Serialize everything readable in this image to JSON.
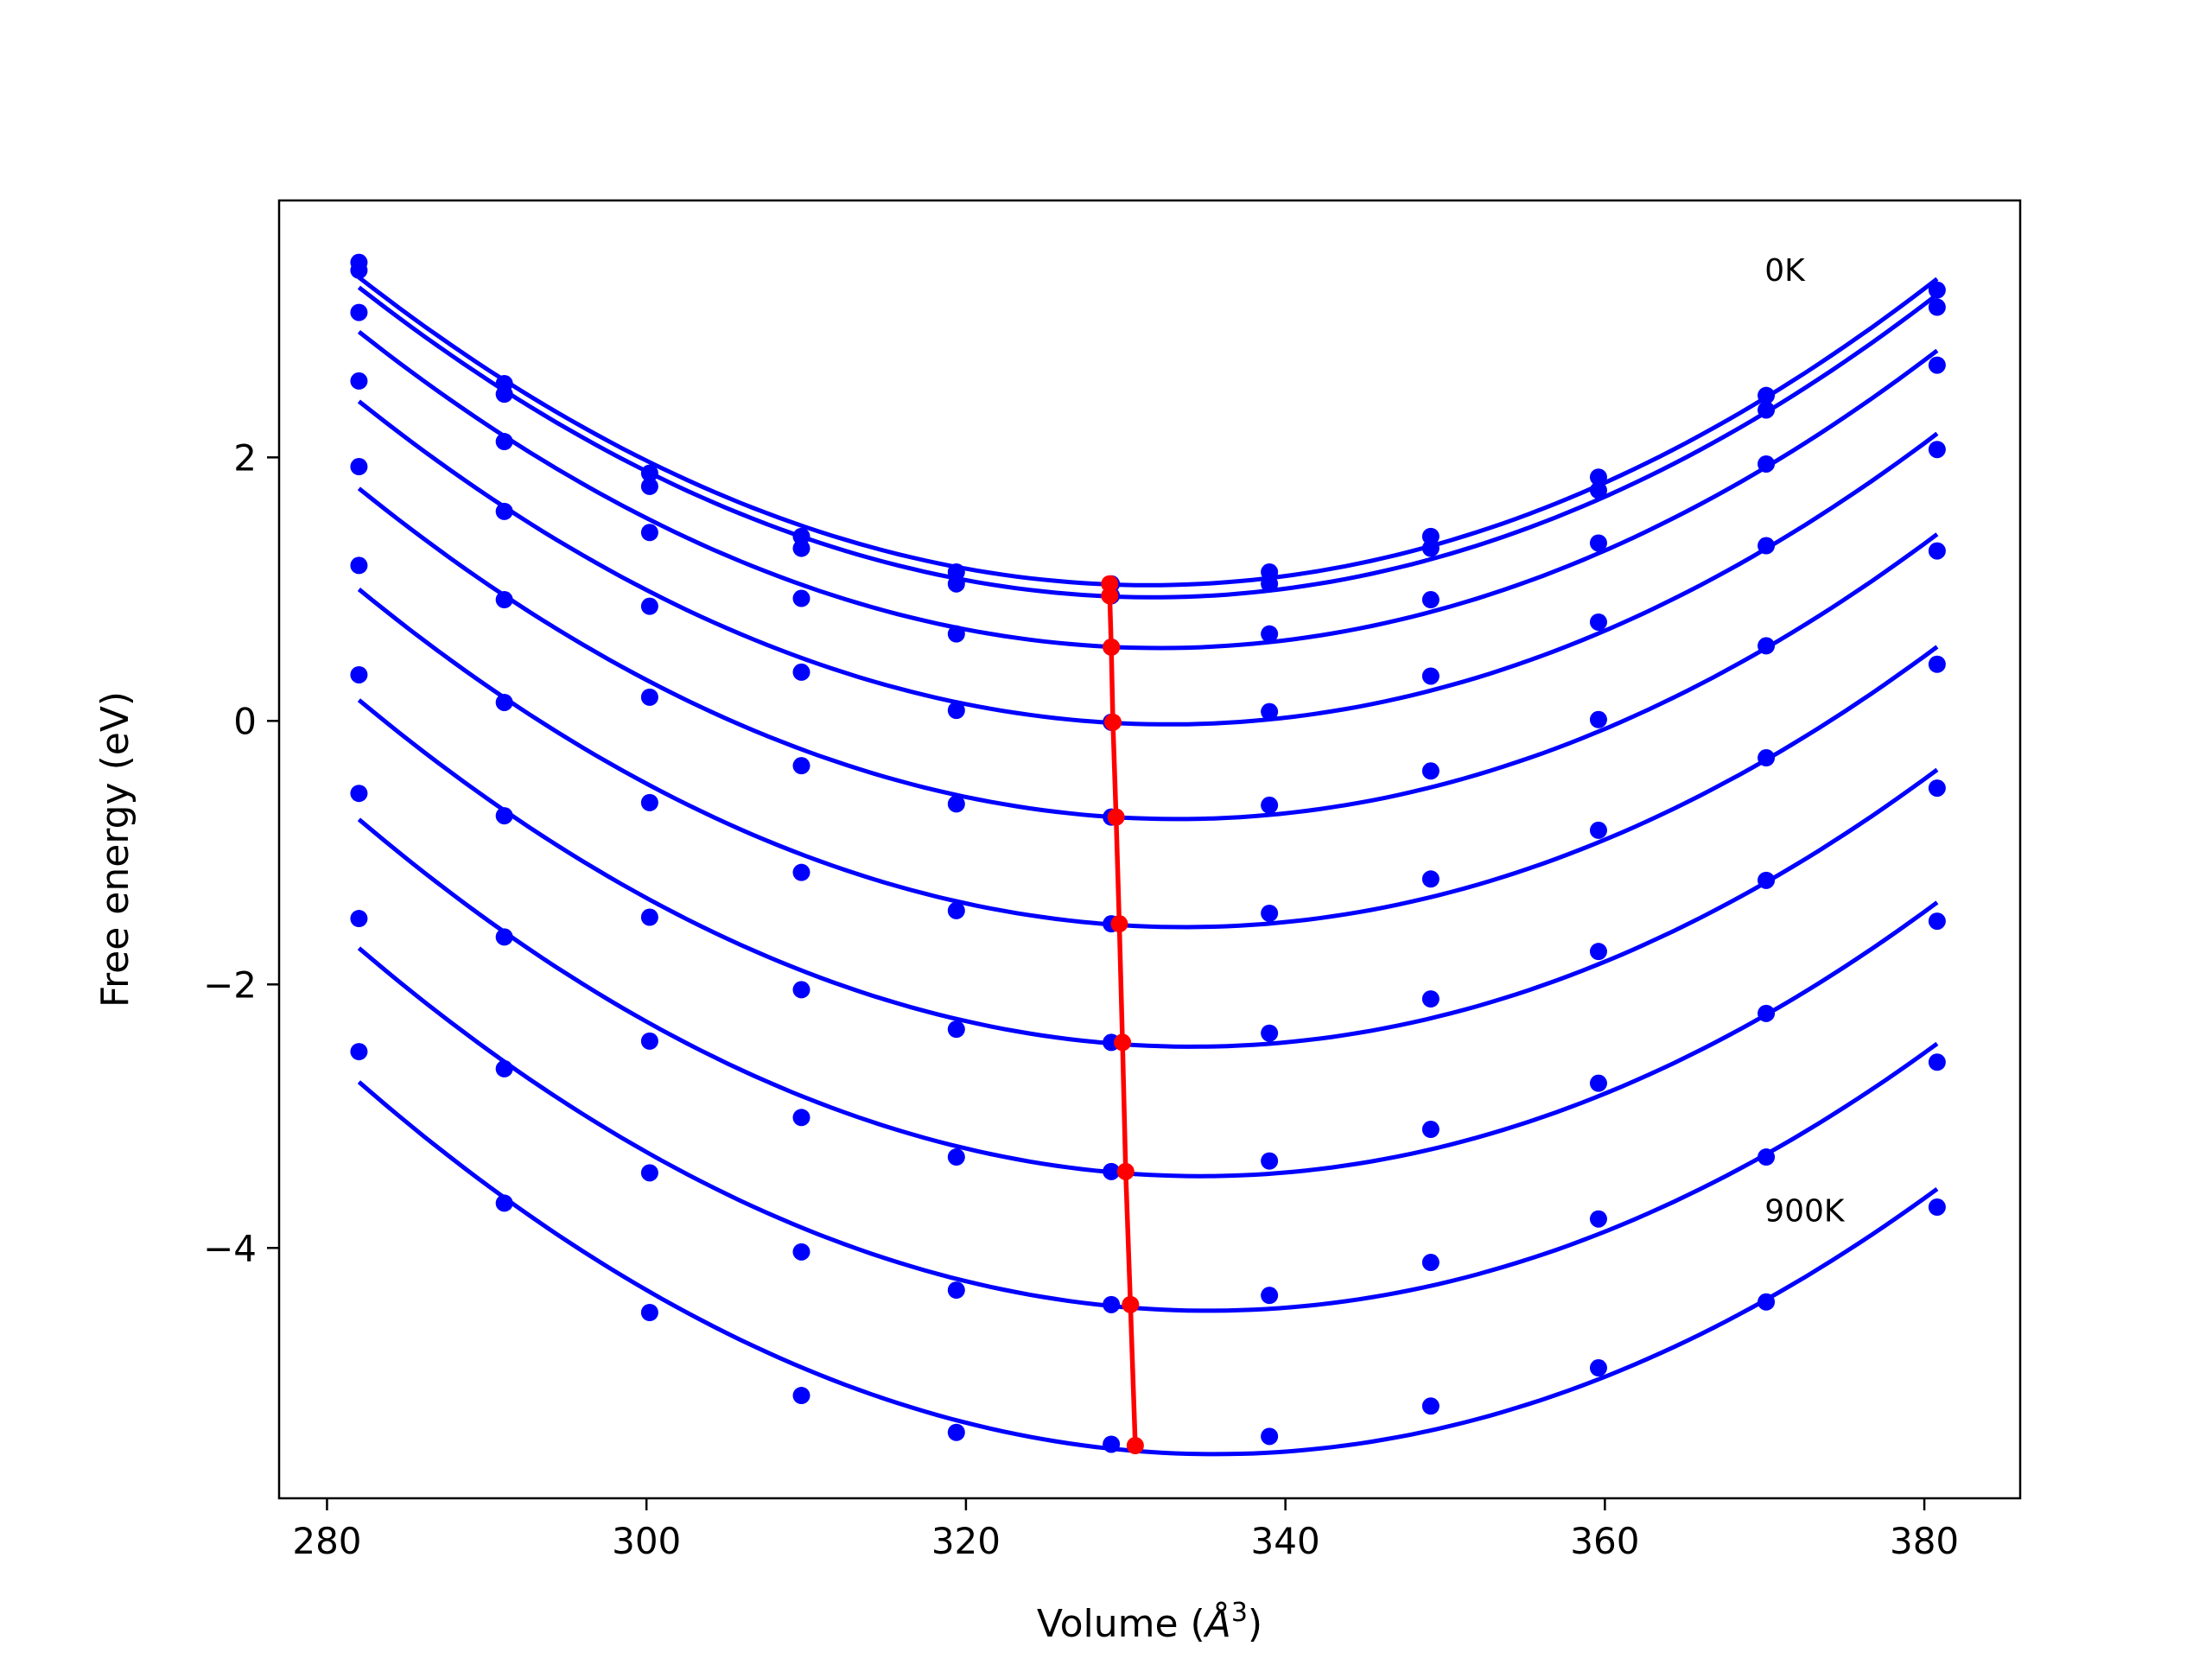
{
  "chart_data": {
    "type": "line",
    "title": "",
    "xlabel_prefix": "Volume (",
    "xlabel_unit_base": "Å",
    "xlabel_unit_exp": "3",
    "xlabel_suffix": ")",
    "ylabel": "Free energy (eV)",
    "xlim": [
      277,
      386
    ],
    "ylim": [
      -5.9,
      3.95
    ],
    "xticks": [
      280,
      300,
      320,
      340,
      360,
      380
    ],
    "xtick_labels": [
      "280",
      "300",
      "320",
      "340",
      "360",
      "380"
    ],
    "yticks": [
      -4,
      -2,
      0,
      2
    ],
    "ytick_labels": [
      "−4",
      "−2",
      "0",
      "2"
    ],
    "grid": false,
    "legend": "none",
    "colors": {
      "series": "#0000ff",
      "minimum": "#ff0000",
      "axes": "#000000"
    },
    "x": [
      282.0,
      291.1,
      300.2,
      309.7,
      319.4,
      329.1,
      339.0,
      349.1,
      359.6,
      370.1,
      380.8
    ],
    "series": [
      {
        "values": [
          3.48,
          2.56,
          1.88,
          1.4,
          1.13,
          1.04,
          1.13,
          1.4,
          1.85,
          2.47,
          3.27
        ]
      },
      {
        "values": [
          3.42,
          2.48,
          1.78,
          1.31,
          1.04,
          0.95,
          1.04,
          1.31,
          1.75,
          2.36,
          3.14
        ]
      },
      {
        "values": [
          3.1,
          2.12,
          1.43,
          0.93,
          0.66,
          0.56,
          0.66,
          0.92,
          1.35,
          1.95,
          2.7
        ]
      },
      {
        "values": [
          2.58,
          1.59,
          0.87,
          0.37,
          0.08,
          -0.01,
          0.07,
          0.34,
          0.75,
          1.33,
          2.06
        ]
      },
      {
        "values": [
          1.93,
          0.92,
          0.18,
          -0.34,
          -0.63,
          -0.73,
          -0.64,
          -0.38,
          0.01,
          0.57,
          1.29
        ]
      },
      {
        "values": [
          1.18,
          0.14,
          -0.62,
          -1.15,
          -1.44,
          -1.54,
          -1.46,
          -1.2,
          -0.83,
          -0.28,
          0.43
        ]
      },
      {
        "values": [
          0.35,
          -0.72,
          -1.49,
          -2.04,
          -2.34,
          -2.44,
          -2.37,
          -2.11,
          -1.75,
          -1.21,
          -0.51
        ]
      },
      {
        "values": [
          -0.55,
          -1.64,
          -2.43,
          -3.01,
          -3.31,
          -3.42,
          -3.34,
          -3.1,
          -2.75,
          -2.22,
          -1.52
        ]
      },
      {
        "values": [
          -1.5,
          -2.64,
          -3.43,
          -4.03,
          -4.32,
          -4.43,
          -4.36,
          -4.11,
          -3.78,
          -3.31,
          -2.59
        ]
      },
      {
        "values": [
          -2.51,
          -3.66,
          -4.49,
          -5.12,
          -5.4,
          -5.49,
          -5.43,
          -5.2,
          -4.91,
          -4.41,
          -3.69
        ]
      }
    ],
    "minimum_curve": {
      "x": [
        329.0,
        329.0,
        329.1,
        329.2,
        329.4,
        329.6,
        329.8,
        330.0,
        330.3,
        330.6
      ],
      "y": [
        1.04,
        0.95,
        0.56,
        -0.01,
        -0.73,
        -1.54,
        -2.44,
        -3.42,
        -4.43,
        -5.5
      ]
    },
    "annotations": [
      {
        "text": "0K",
        "x": 370.0,
        "y": 3.42
      },
      {
        "text": "900K",
        "x": 370.0,
        "y": -3.72
      }
    ]
  }
}
